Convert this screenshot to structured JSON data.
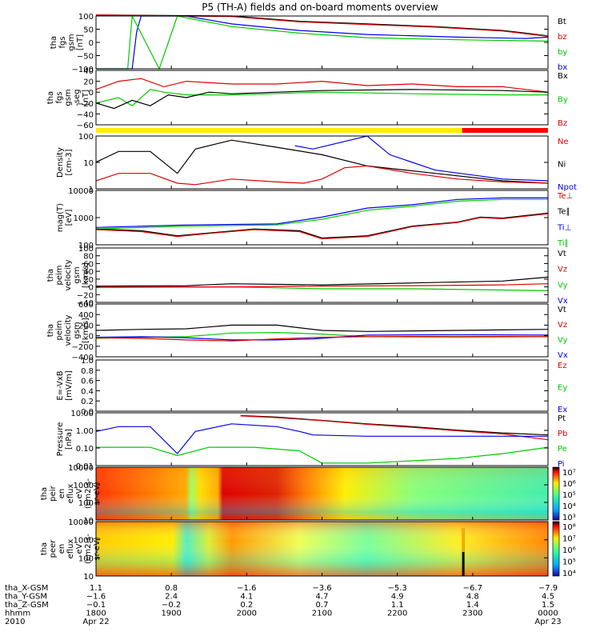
{
  "title": "P5 (TH-A) fields and on-board moments overview",
  "colors": {
    "black": "#000000",
    "red": "#e00000",
    "green": "#00cc00",
    "blue": "#0000ee",
    "yellow": "#ffee00",
    "fill_red": "#ff0000"
  },
  "chart_data": [
    {
      "id": "fgs",
      "type": "line",
      "ylabel": [
        "tha",
        "fgs",
        "gsm",
        "[nT]"
      ],
      "ylim": [
        -100,
        100
      ],
      "yticks": [
        "100",
        "50",
        "0",
        "−50",
        "−100"
      ],
      "legend": [
        "Bt",
        "bz",
        "by",
        "bx"
      ],
      "legend_colors": [
        "black",
        "red",
        "green",
        "blue"
      ],
      "series": [
        {
          "name": "bx",
          "color": "blue",
          "x": [
            0,
            0.08,
            0.09,
            0.1,
            0.2,
            0.3,
            0.45,
            0.6,
            0.8,
            0.95,
            1
          ],
          "y": [
            -100,
            -100,
            40,
            100,
            100,
            70,
            45,
            30,
            20,
            15,
            20
          ]
        },
        {
          "name": "by",
          "color": "green",
          "x": [
            0,
            0.07,
            0.08,
            0.14,
            0.18,
            0.3,
            0.45,
            0.6,
            0.8,
            1
          ],
          "y": [
            -100,
            -100,
            100,
            -100,
            100,
            60,
            35,
            18,
            10,
            5
          ]
        },
        {
          "name": "Bt",
          "color": "black",
          "x": [
            0,
            0.3,
            0.45,
            0.6,
            0.75,
            0.9,
            0.95,
            1
          ],
          "y": [
            110,
            100,
            80,
            70,
            60,
            45,
            35,
            25
          ]
        },
        {
          "name": "bz",
          "color": "red",
          "x": [
            0,
            0.3,
            0.45,
            0.6,
            0.75,
            0.9,
            0.95,
            1
          ],
          "y": [
            105,
            98,
            78,
            68,
            58,
            43,
            33,
            23
          ]
        }
      ]
    },
    {
      "id": "fgs_seg",
      "type": "line",
      "ylabel": [
        "tha",
        "fgs",
        "gsm",
        "-seg",
        "[nT]"
      ],
      "ylim": [
        -60,
        40
      ],
      "yticks": [
        "40",
        "20",
        "0",
        "−20",
        "−40",
        "−60"
      ],
      "legend": [
        "Bx",
        "By",
        "Bz"
      ],
      "legend_colors": [
        "black",
        "green",
        "red"
      ],
      "series": [
        {
          "name": "Bz",
          "color": "red",
          "x": [
            0,
            0.05,
            0.1,
            0.15,
            0.2,
            0.3,
            0.4,
            0.5,
            0.6,
            0.7,
            0.8,
            0.9,
            1
          ],
          "y": [
            5,
            20,
            25,
            10,
            20,
            15,
            15,
            20,
            12,
            15,
            10,
            10,
            0
          ]
        },
        {
          "name": "By",
          "color": "green",
          "x": [
            0,
            0.05,
            0.08,
            0.12,
            0.15,
            0.2,
            0.3,
            0.5,
            0.7,
            0.9,
            1
          ],
          "y": [
            -20,
            -10,
            -25,
            5,
            0,
            -5,
            -5,
            0,
            -3,
            -5,
            -5
          ]
        },
        {
          "name": "Bx",
          "color": "black",
          "x": [
            0,
            0.04,
            0.08,
            0.12,
            0.16,
            0.2,
            0.25,
            0.3,
            0.4,
            0.5,
            0.7,
            0.9,
            1
          ],
          "y": [
            -20,
            -30,
            -15,
            -25,
            -5,
            -10,
            0,
            -3,
            0,
            3,
            5,
            3,
            0
          ]
        }
      ]
    },
    {
      "id": "density",
      "type": "line",
      "ylabel": [
        "Density",
        "[cm-3]"
      ],
      "ylog": true,
      "ylim": [
        0.3,
        200
      ],
      "yticks": [
        "100",
        "10",
        "1"
      ],
      "legend": [
        "Ne",
        "Ni",
        "Npot"
      ],
      "legend_colors": [
        "red",
        "black",
        "blue"
      ],
      "series": [
        {
          "name": "Ni",
          "color": "black",
          "x": [
            0,
            0.05,
            0.12,
            0.18,
            0.22,
            0.3,
            0.4,
            0.5,
            0.6,
            0.75,
            0.9,
            1
          ],
          "y": [
            8,
            30,
            30,
            2,
            40,
            120,
            50,
            20,
            5,
            2,
            0.8,
            0.6
          ]
        },
        {
          "name": "Ne",
          "color": "red",
          "x": [
            0,
            0.05,
            0.12,
            0.18,
            0.22,
            0.3,
            0.4,
            0.46,
            0.5,
            0.55,
            0.6,
            0.7,
            0.8,
            0.9,
            1
          ],
          "y": [
            0.8,
            2,
            2,
            0.6,
            0.5,
            1,
            0.7,
            0.6,
            1,
            4,
            5,
            2,
            1,
            0.7,
            0.6
          ]
        },
        {
          "name": "Npot",
          "color": "blue",
          "x": [
            0.44,
            0.48,
            0.6,
            0.65,
            0.75,
            0.9,
            1
          ],
          "y": [
            60,
            40,
            200,
            20,
            3,
            1,
            0.8
          ]
        }
      ]
    },
    {
      "id": "temperature",
      "type": "line",
      "ylabel": [
        "mag(T)",
        "[eV]"
      ],
      "ylog": true,
      "ylim": [
        60,
        15000
      ],
      "yticks": [
        "10000",
        "1000",
        "100"
      ],
      "legend": [
        "Te⊥",
        "Te∥",
        "Ti⊥",
        "Ti∥"
      ],
      "legend_colors": [
        "red",
        "black",
        "blue",
        "green"
      ],
      "series": [
        {
          "name": "Ti",
          "color": "green",
          "x": [
            0,
            0.2,
            0.4,
            0.5,
            0.6,
            0.7,
            0.8,
            0.9,
            1
          ],
          "y": [
            300,
            400,
            450,
            800,
            2000,
            3000,
            5000,
            6000,
            6000
          ]
        },
        {
          "name": "Ti2",
          "color": "blue",
          "x": [
            0,
            0.2,
            0.4,
            0.5,
            0.6,
            0.7,
            0.8,
            0.9,
            1
          ],
          "y": [
            350,
            450,
            500,
            1000,
            2500,
            3500,
            6000,
            7000,
            7000
          ]
        },
        {
          "name": "Te",
          "color": "black",
          "x": [
            0,
            0.1,
            0.18,
            0.25,
            0.35,
            0.45,
            0.5,
            0.6,
            0.7,
            0.8,
            0.85,
            0.9,
            1
          ],
          "y": [
            300,
            250,
            150,
            200,
            300,
            250,
            120,
            150,
            400,
            600,
            1000,
            900,
            1500
          ]
        },
        {
          "name": "Te2",
          "color": "red",
          "x": [
            0,
            0.1,
            0.18,
            0.25,
            0.35,
            0.45,
            0.5,
            0.6,
            0.7,
            0.8,
            0.85,
            0.9,
            1
          ],
          "y": [
            280,
            230,
            140,
            190,
            280,
            230,
            110,
            140,
            380,
            580,
            950,
            850,
            1400
          ]
        }
      ]
    },
    {
      "id": "velocity_esa",
      "type": "line",
      "ylabel": [
        "tha",
        "peim",
        "velocity",
        "gsm",
        "[km/s]"
      ],
      "ylim": [
        -40,
        100
      ],
      "yticks": [
        "100",
        "80",
        "60",
        "40",
        "20",
        "0",
        "−20",
        "−40"
      ],
      "legend": [
        "Vt",
        "Vz",
        "Vy",
        "Vx"
      ],
      "legend_colors": [
        "black",
        "red",
        "green",
        "blue"
      ],
      "series": [
        {
          "name": "Vt",
          "color": "black",
          "x": [
            0,
            0.2,
            0.3,
            0.5,
            0.7,
            0.9,
            1
          ],
          "y": [
            2,
            3,
            8,
            5,
            10,
            15,
            25
          ]
        },
        {
          "name": "Vy",
          "color": "green",
          "x": [
            0,
            0.3,
            0.5,
            0.7,
            0.9,
            1
          ],
          "y": [
            -2,
            0,
            -5,
            -5,
            -8,
            -10
          ]
        },
        {
          "name": "Vz",
          "color": "red",
          "x": [
            0,
            0.3,
            0.5,
            0.7,
            0.9,
            1
          ],
          "y": [
            0,
            0,
            2,
            3,
            5,
            8
          ]
        }
      ]
    },
    {
      "id": "velocity",
      "type": "line",
      "ylabel": [
        "tha",
        "peim",
        "velocity",
        "gsm",
        "[km/s]"
      ],
      "ylim": [
        -400,
        600
      ],
      "yticks": [
        "600",
        "400",
        "200",
        "0",
        "−200",
        "−400"
      ],
      "legend": [
        "Vt",
        "Vz",
        "Vy",
        "Vx"
      ],
      "legend_colors": [
        "black",
        "red",
        "green",
        "blue"
      ],
      "series": [
        {
          "name": "Vt",
          "color": "black",
          "x": [
            0,
            0.1,
            0.2,
            0.3,
            0.4,
            0.5,
            0.6,
            0.8,
            1
          ],
          "y": [
            100,
            120,
            130,
            200,
            200,
            100,
            80,
            100,
            120
          ]
        },
        {
          "name": "Vy",
          "color": "green",
          "x": [
            0,
            0.1,
            0.2,
            0.3,
            0.4,
            0.5,
            0.6,
            0.8,
            1
          ],
          "y": [
            -50,
            -30,
            -20,
            50,
            60,
            30,
            -20,
            -30,
            -20
          ]
        },
        {
          "name": "Vx",
          "color": "blue",
          "x": [
            0,
            0.1,
            0.2,
            0.3,
            0.4,
            0.48,
            0.6,
            0.8,
            1
          ],
          "y": [
            -30,
            -20,
            -40,
            -80,
            -80,
            -60,
            10,
            20,
            10
          ]
        },
        {
          "name": "Vz",
          "color": "red",
          "x": [
            0,
            0.1,
            0.2,
            0.3,
            0.4,
            0.5,
            0.6,
            0.8,
            1
          ],
          "y": [
            -40,
            -50,
            -80,
            -100,
            -60,
            -30,
            -20,
            -10,
            -20
          ]
        }
      ]
    },
    {
      "id": "efield",
      "type": "line",
      "ylabel": [
        "E=-VxB",
        "[mV/m]"
      ],
      "ylim": [
        0,
        1
      ],
      "yticks": [
        "1.0",
        "0.8",
        "0.6",
        "0.4",
        "0.2",
        "0.0"
      ],
      "legend": [
        "Ez",
        "Ey",
        "Ex"
      ],
      "legend_colors": [
        "red",
        "green",
        "blue"
      ],
      "series": []
    },
    {
      "id": "pressure",
      "type": "line",
      "ylabel": [
        "Pressure",
        "[nPa]"
      ],
      "ylog": true,
      "ylim": [
        0.007,
        15
      ],
      "yticks": [
        "10.00",
        "1.00",
        "0.10",
        "0.01"
      ],
      "legend": [
        "Pt",
        "Pb",
        "Pe",
        "Pi"
      ],
      "legend_colors": [
        "black",
        "red",
        "green",
        "blue"
      ],
      "series": [
        {
          "name": "Pt",
          "color": "black",
          "x": [
            0.32,
            0.4,
            0.5,
            0.6,
            0.7,
            0.8,
            0.9,
            1
          ],
          "y": [
            10,
            8,
            5,
            3,
            2,
            1.2,
            0.8,
            0.6
          ]
        },
        {
          "name": "Pb",
          "color": "red",
          "x": [
            0.32,
            0.4,
            0.5,
            0.6,
            0.7,
            0.8,
            0.9,
            1
          ],
          "y": [
            9.5,
            7.5,
            4.8,
            2.8,
            1.8,
            1.1,
            0.7,
            0.3
          ]
        },
        {
          "name": "Pi",
          "color": "blue",
          "x": [
            0,
            0.05,
            0.12,
            0.18,
            0.22,
            0.3,
            0.4,
            0.45,
            0.48,
            0.6,
            0.8,
            1
          ],
          "y": [
            1,
            2,
            2,
            0.04,
            1,
            3,
            2,
            1,
            0.6,
            0.5,
            0.5,
            0.5
          ]
        },
        {
          "name": "Pe",
          "color": "green",
          "x": [
            0,
            0.05,
            0.12,
            0.18,
            0.25,
            0.35,
            0.45,
            0.5,
            0.6,
            0.8,
            0.9,
            1
          ],
          "y": [
            0.1,
            0.1,
            0.1,
            0.03,
            0.1,
            0.1,
            0.06,
            0.01,
            0.01,
            0.02,
            0.04,
            0.1
          ]
        }
      ]
    },
    {
      "id": "ion_spec",
      "type": "heatmap",
      "ylabel": [
        "tha",
        "peir",
        "en",
        "eflux",
        "eV",
        "(cm2-s-",
        "sr-eV)"
      ],
      "ylog": true,
      "ylim": [
        7,
        20000
      ],
      "yticks": [
        "10000",
        "1000",
        "100",
        "10"
      ],
      "colorbar": [
        "10⁷",
        "10⁶",
        "10⁵",
        "10⁴",
        "10³"
      ]
    },
    {
      "id": "electron_spec",
      "type": "heatmap",
      "ylabel": [
        "tha",
        "peer",
        "en",
        "eflux",
        "eV",
        "(cm2-s-",
        "sr-eV)"
      ],
      "ylog": true,
      "ylim": [
        7,
        20000
      ],
      "yticks": [
        "10000",
        "1000",
        "100",
        "10"
      ],
      "colorbar": [
        "10⁸",
        "10⁷",
        "10⁶",
        "10⁵",
        "10⁴"
      ]
    }
  ],
  "x_axis": {
    "rows": [
      "tha_X-GSM",
      "tha_Y-GSM",
      "tha_Z-GSM",
      "hhmm",
      "2010"
    ],
    "ticks": [
      [
        "1.1",
        "−1.6",
        "−0.1",
        "1800",
        "Apr 22"
      ],
      [
        "0.8",
        "2.4",
        "−0.2",
        "1900",
        ""
      ],
      [
        "−1.6",
        "4.1",
        "0.2",
        "2000",
        ""
      ],
      [
        "−3.6",
        "4.7",
        "0.7",
        "2100",
        ""
      ],
      [
        "−5.3",
        "4.9",
        "1.1",
        "2200",
        ""
      ],
      [
        "−6.7",
        "4.8",
        "1.4",
        "2300",
        ""
      ],
      [
        "−7.9",
        "4.5",
        "1.5",
        "0000",
        "Apr 23"
      ]
    ]
  }
}
